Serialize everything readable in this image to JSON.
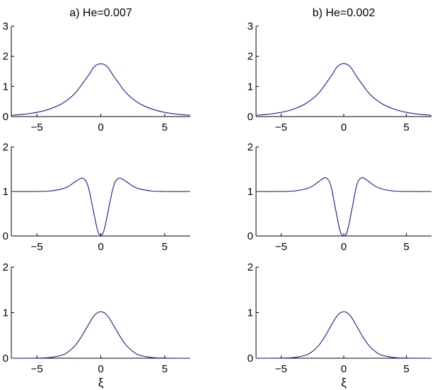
{
  "chart_data": [
    {
      "type": "line",
      "title": "a)  He=0.007",
      "xlim": [
        -7,
        7
      ],
      "ylim": [
        0,
        3
      ],
      "xticks": [
        "-5",
        "0",
        "5"
      ],
      "yticks": [
        "0",
        "1",
        "2",
        "3"
      ],
      "xlabel": "",
      "series": [
        {
          "x": [
            -7,
            -6,
            -5,
            -4,
            -3,
            -2,
            -1,
            -0.5,
            0,
            0.5,
            1,
            2,
            3,
            4,
            5,
            6,
            7
          ],
          "y": [
            0.04,
            0.08,
            0.14,
            0.25,
            0.44,
            0.78,
            1.35,
            1.66,
            1.75,
            1.66,
            1.35,
            0.78,
            0.44,
            0.25,
            0.14,
            0.08,
            0.04
          ]
        }
      ]
    },
    {
      "type": "line",
      "title": "b)  He=0.002",
      "xlim": [
        -7,
        7
      ],
      "ylim": [
        0,
        3
      ],
      "xticks": [
        "-5",
        "0",
        "5"
      ],
      "yticks": [
        "0",
        "1",
        "2",
        "3"
      ],
      "xlabel": "",
      "series": [
        {
          "x": [
            -7,
            -6,
            -5,
            -4,
            -3,
            -2,
            -1,
            -0.5,
            0,
            0.5,
            1,
            2,
            3,
            4,
            5,
            6,
            7
          ],
          "y": [
            0.04,
            0.08,
            0.14,
            0.25,
            0.44,
            0.78,
            1.35,
            1.66,
            1.76,
            1.66,
            1.35,
            0.78,
            0.44,
            0.25,
            0.14,
            0.08,
            0.04
          ]
        }
      ]
    },
    {
      "type": "line",
      "title": "",
      "xlim": [
        -7,
        7
      ],
      "ylim": [
        0,
        2
      ],
      "xticks": [
        "-5",
        "0",
        "5"
      ],
      "yticks": [
        "0",
        "1",
        "2"
      ],
      "xlabel": "",
      "series": [
        {
          "x": [
            -7,
            -5,
            -4,
            -3,
            -2.5,
            -2,
            -1.5,
            -1.2,
            -1,
            -0.8,
            -0.5,
            -0.3,
            -0.15,
            0,
            0.15,
            0.3,
            0.5,
            0.8,
            1,
            1.2,
            1.5,
            2,
            2.5,
            3,
            4,
            5,
            7
          ],
          "y": [
            1.0,
            1.0,
            1.01,
            1.06,
            1.12,
            1.22,
            1.3,
            1.25,
            1.12,
            0.88,
            0.45,
            0.18,
            0.05,
            0.02,
            0.05,
            0.18,
            0.45,
            0.88,
            1.12,
            1.25,
            1.3,
            1.22,
            1.12,
            1.06,
            1.01,
            1.0,
            1.0
          ]
        }
      ]
    },
    {
      "type": "line",
      "title": "",
      "xlim": [
        -7,
        7
      ],
      "ylim": [
        0,
        2
      ],
      "xticks": [
        "-5",
        "0",
        "5"
      ],
      "yticks": [
        "0",
        "1",
        "2"
      ],
      "xlabel": "",
      "series": [
        {
          "x": [
            -7,
            -5,
            -4,
            -3,
            -2.5,
            -2,
            -1.5,
            -1.2,
            -1,
            -0.8,
            -0.5,
            -0.3,
            -0.15,
            0,
            0.15,
            0.3,
            0.5,
            0.8,
            1,
            1.2,
            1.5,
            2,
            2.5,
            3,
            4,
            5,
            7
          ],
          "y": [
            1.0,
            1.0,
            1.01,
            1.06,
            1.12,
            1.22,
            1.31,
            1.25,
            1.1,
            0.82,
            0.38,
            0.12,
            0.02,
            0.0,
            0.02,
            0.12,
            0.38,
            0.82,
            1.1,
            1.25,
            1.31,
            1.22,
            1.12,
            1.06,
            1.01,
            1.0,
            1.0
          ]
        }
      ]
    },
    {
      "type": "line",
      "title": "",
      "xlim": [
        -7,
        7
      ],
      "ylim": [
        0,
        2
      ],
      "xticks": [
        "-5",
        "0",
        "5"
      ],
      "yticks": [
        "0",
        "1",
        "2"
      ],
      "xlabel": "ξ",
      "series": [
        {
          "x": [
            -7,
            -6,
            -5,
            -4,
            -3,
            -2.5,
            -2,
            -1.5,
            -1,
            -0.5,
            0,
            0.5,
            1,
            1.5,
            2,
            2.5,
            3,
            4,
            5,
            6,
            7
          ],
          "y": [
            0.0,
            0.0,
            0.003,
            0.015,
            0.07,
            0.15,
            0.28,
            0.48,
            0.72,
            0.94,
            1.02,
            0.94,
            0.72,
            0.48,
            0.28,
            0.15,
            0.07,
            0.015,
            0.003,
            0.0,
            0.0
          ]
        }
      ]
    },
    {
      "type": "line",
      "title": "",
      "xlim": [
        -7,
        7
      ],
      "ylim": [
        0,
        2
      ],
      "xticks": [
        "-5",
        "0",
        "5"
      ],
      "yticks": [
        "0",
        "1",
        "2"
      ],
      "xlabel": "ξ",
      "series": [
        {
          "x": [
            -7,
            -6,
            -5,
            -4,
            -3,
            -2.5,
            -2,
            -1.5,
            -1,
            -0.5,
            0,
            0.5,
            1,
            1.5,
            2,
            2.5,
            3,
            4,
            5,
            6,
            7
          ],
          "y": [
            0.0,
            0.0,
            0.003,
            0.015,
            0.07,
            0.15,
            0.28,
            0.48,
            0.72,
            0.94,
            1.02,
            0.94,
            0.72,
            0.48,
            0.28,
            0.15,
            0.07,
            0.015,
            0.003,
            0.0,
            0.0
          ]
        }
      ]
    }
  ],
  "colors": {
    "curve": "#1a1a8c",
    "axis": "#000000"
  }
}
